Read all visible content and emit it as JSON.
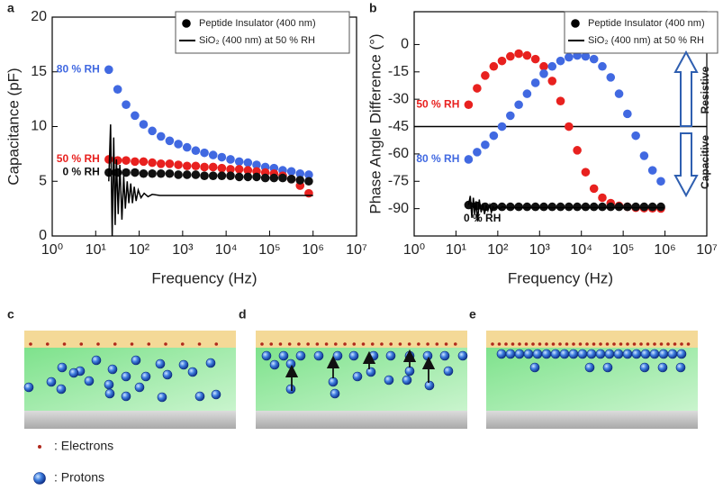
{
  "chart_data": [
    {
      "type": "scatter",
      "panel": "a",
      "xlabel": "Frequency (Hz)",
      "ylabel": "Capacitance (pF)",
      "xscale": "log",
      "grid": false,
      "xlim": [
        1,
        10000000
      ],
      "ylim": [
        0,
        20
      ],
      "xticks": [
        {
          "value": 1,
          "label": "10⁰"
        },
        {
          "value": 10,
          "label": "10¹"
        },
        {
          "value": 100,
          "label": "10²"
        },
        {
          "value": 1000,
          "label": "10³"
        },
        {
          "value": 10000,
          "label": "10⁴"
        },
        {
          "value": 100000,
          "label": "10⁵"
        },
        {
          "value": 1000000,
          "label": "10⁶"
        },
        {
          "value": 10000000,
          "label": "10⁷"
        }
      ],
      "yticks": [
        0,
        5,
        10,
        15,
        20
      ],
      "legend": {
        "position": "upper right",
        "marker_label": "Peptide Insulator (400 nm)"
      },
      "x": [
        20,
        32,
        50,
        80,
        126,
        200,
        317,
        502,
        796,
        1262,
        2000,
        3170,
        5024,
        7962,
        12619,
        20000,
        31698,
        50238,
        79621,
        126191,
        200000,
        316979,
        502377,
        796214
      ],
      "series": [
        {
          "name": "80 % RH",
          "color": "#4169e1",
          "marker": "dot",
          "values": [
            15.2,
            13.4,
            12.0,
            11.0,
            10.2,
            9.6,
            9.1,
            8.7,
            8.4,
            8.1,
            7.8,
            7.6,
            7.4,
            7.2,
            7.0,
            6.8,
            6.7,
            6.5,
            6.3,
            6.2,
            6.0,
            5.9,
            5.7,
            5.6
          ]
        },
        {
          "name": "50 % RH",
          "color": "#e8211f",
          "marker": "dot",
          "values": [
            7.0,
            6.9,
            6.9,
            6.8,
            6.8,
            6.7,
            6.6,
            6.6,
            6.5,
            6.4,
            6.4,
            6.3,
            6.3,
            6.2,
            6.1,
            6.1,
            6.0,
            5.9,
            5.8,
            5.7,
            5.5,
            5.2,
            4.6,
            3.9
          ]
        },
        {
          "name": "0 % RH",
          "color": "#111111",
          "marker": "dot",
          "values": [
            5.8,
            5.8,
            5.8,
            5.8,
            5.7,
            5.7,
            5.7,
            5.7,
            5.6,
            5.6,
            5.6,
            5.5,
            5.5,
            5.5,
            5.5,
            5.4,
            5.4,
            5.4,
            5.3,
            5.3,
            5.3,
            5.2,
            5.1,
            5.0
          ]
        },
        {
          "name": "SiO₂ (400 nm) at 50 % RH",
          "color": "#000000",
          "marker": "line",
          "x": [
            20,
            22,
            24,
            26,
            28,
            30,
            33,
            36,
            40,
            44,
            48,
            53,
            58,
            64,
            70,
            77,
            85,
            95,
            110,
            130,
            160,
            200,
            300,
            500,
            1000,
            10000,
            100000,
            1000000
          ],
          "values": [
            5,
            10.2,
            0,
            9,
            1,
            7,
            2,
            6.5,
            1.5,
            5.5,
            2.5,
            5,
            3,
            4.8,
            3,
            4.5,
            3.2,
            4.2,
            3.5,
            3.9,
            3.6,
            3.8,
            3.7,
            3.7,
            3.7,
            3.7,
            3.7,
            3.7
          ]
        }
      ]
    },
    {
      "type": "scatter",
      "panel": "b",
      "xlabel": "Frequency (Hz)",
      "ylabel": "Phase Angle Difference (°)",
      "xscale": "log",
      "grid": false,
      "xlim": [
        1,
        10000000
      ],
      "ylim": [
        -105,
        18
      ],
      "xticks": [
        {
          "value": 1,
          "label": "10⁰"
        },
        {
          "value": 10,
          "label": "10¹"
        },
        {
          "value": 100,
          "label": "10²"
        },
        {
          "value": 1000,
          "label": "10³"
        },
        {
          "value": 10000,
          "label": "10⁴"
        },
        {
          "value": 100000,
          "label": "10⁵"
        },
        {
          "value": 1000000,
          "label": "10⁶"
        },
        {
          "value": 10000000,
          "label": "10⁷"
        }
      ],
      "yticks": [
        0,
        -15,
        -30,
        -45,
        -60,
        -75,
        -90
      ],
      "reference_line": -45,
      "annotations": [
        "Resistive",
        "Capacitive"
      ],
      "legend": {
        "position": "upper right",
        "marker_label": "Peptide Insulator (400 nm)"
      },
      "x": [
        20,
        32,
        50,
        80,
        126,
        200,
        317,
        502,
        796,
        1262,
        2000,
        3170,
        5024,
        7962,
        12619,
        20000,
        31698,
        50238,
        79621,
        126191,
        200000,
        316979,
        502377,
        796214
      ],
      "series": [
        {
          "name": "50 % RH",
          "color": "#e8211f",
          "marker": "dot",
          "values": [
            -33,
            -24,
            -17,
            -12,
            -9,
            -6.5,
            -5,
            -6,
            -8,
            -12,
            -20,
            -31,
            -45,
            -58,
            -70,
            -79,
            -84,
            -87,
            -88.5,
            -89,
            -89.5,
            -89.7,
            -89.8,
            -89.9
          ]
        },
        {
          "name": "80 % RH",
          "color": "#4169e1",
          "marker": "dot",
          "values": [
            -63,
            -59,
            -55,
            -50,
            -45,
            -39,
            -33,
            -27,
            -21,
            -16,
            -12,
            -9,
            -7,
            -6,
            -6.5,
            -8,
            -12,
            -18,
            -27,
            -38,
            -50,
            -61,
            -69,
            -75
          ]
        },
        {
          "name": "0 % RH",
          "color": "#111111",
          "marker": "dot",
          "values": [
            -88,
            -88.5,
            -89,
            -89,
            -89,
            -89,
            -89,
            -89,
            -89,
            -89,
            -89,
            -89,
            -89,
            -89,
            -89,
            -89,
            -89,
            -89,
            -89,
            -89,
            -89,
            -89,
            -89,
            -89
          ]
        },
        {
          "name": "SiO₂ (400 nm) at 50 % RH",
          "color": "#000000",
          "marker": "line",
          "x": [
            20,
            22,
            24,
            26,
            28,
            30,
            33,
            36,
            40,
            44,
            48,
            53,
            58,
            64,
            70,
            77,
            85,
            95,
            110,
            130,
            160,
            200,
            300,
            500,
            1000,
            10000,
            100000,
            1000000
          ],
          "values": [
            -88,
            -83,
            -95,
            -84,
            -93,
            -86,
            -97,
            -85,
            -92,
            -87,
            -93,
            -88,
            -91,
            -88,
            -92,
            -89,
            -90,
            -89,
            -90,
            -89,
            -89.5,
            -89.5,
            -89.5,
            -89.5,
            -89.5,
            -89.5,
            -89.5,
            -89.5
          ]
        }
      ]
    }
  ],
  "diagram": {
    "panels": [
      "c",
      "d",
      "e"
    ],
    "legend": [
      ": Electrons",
      ": Protons"
    ]
  }
}
